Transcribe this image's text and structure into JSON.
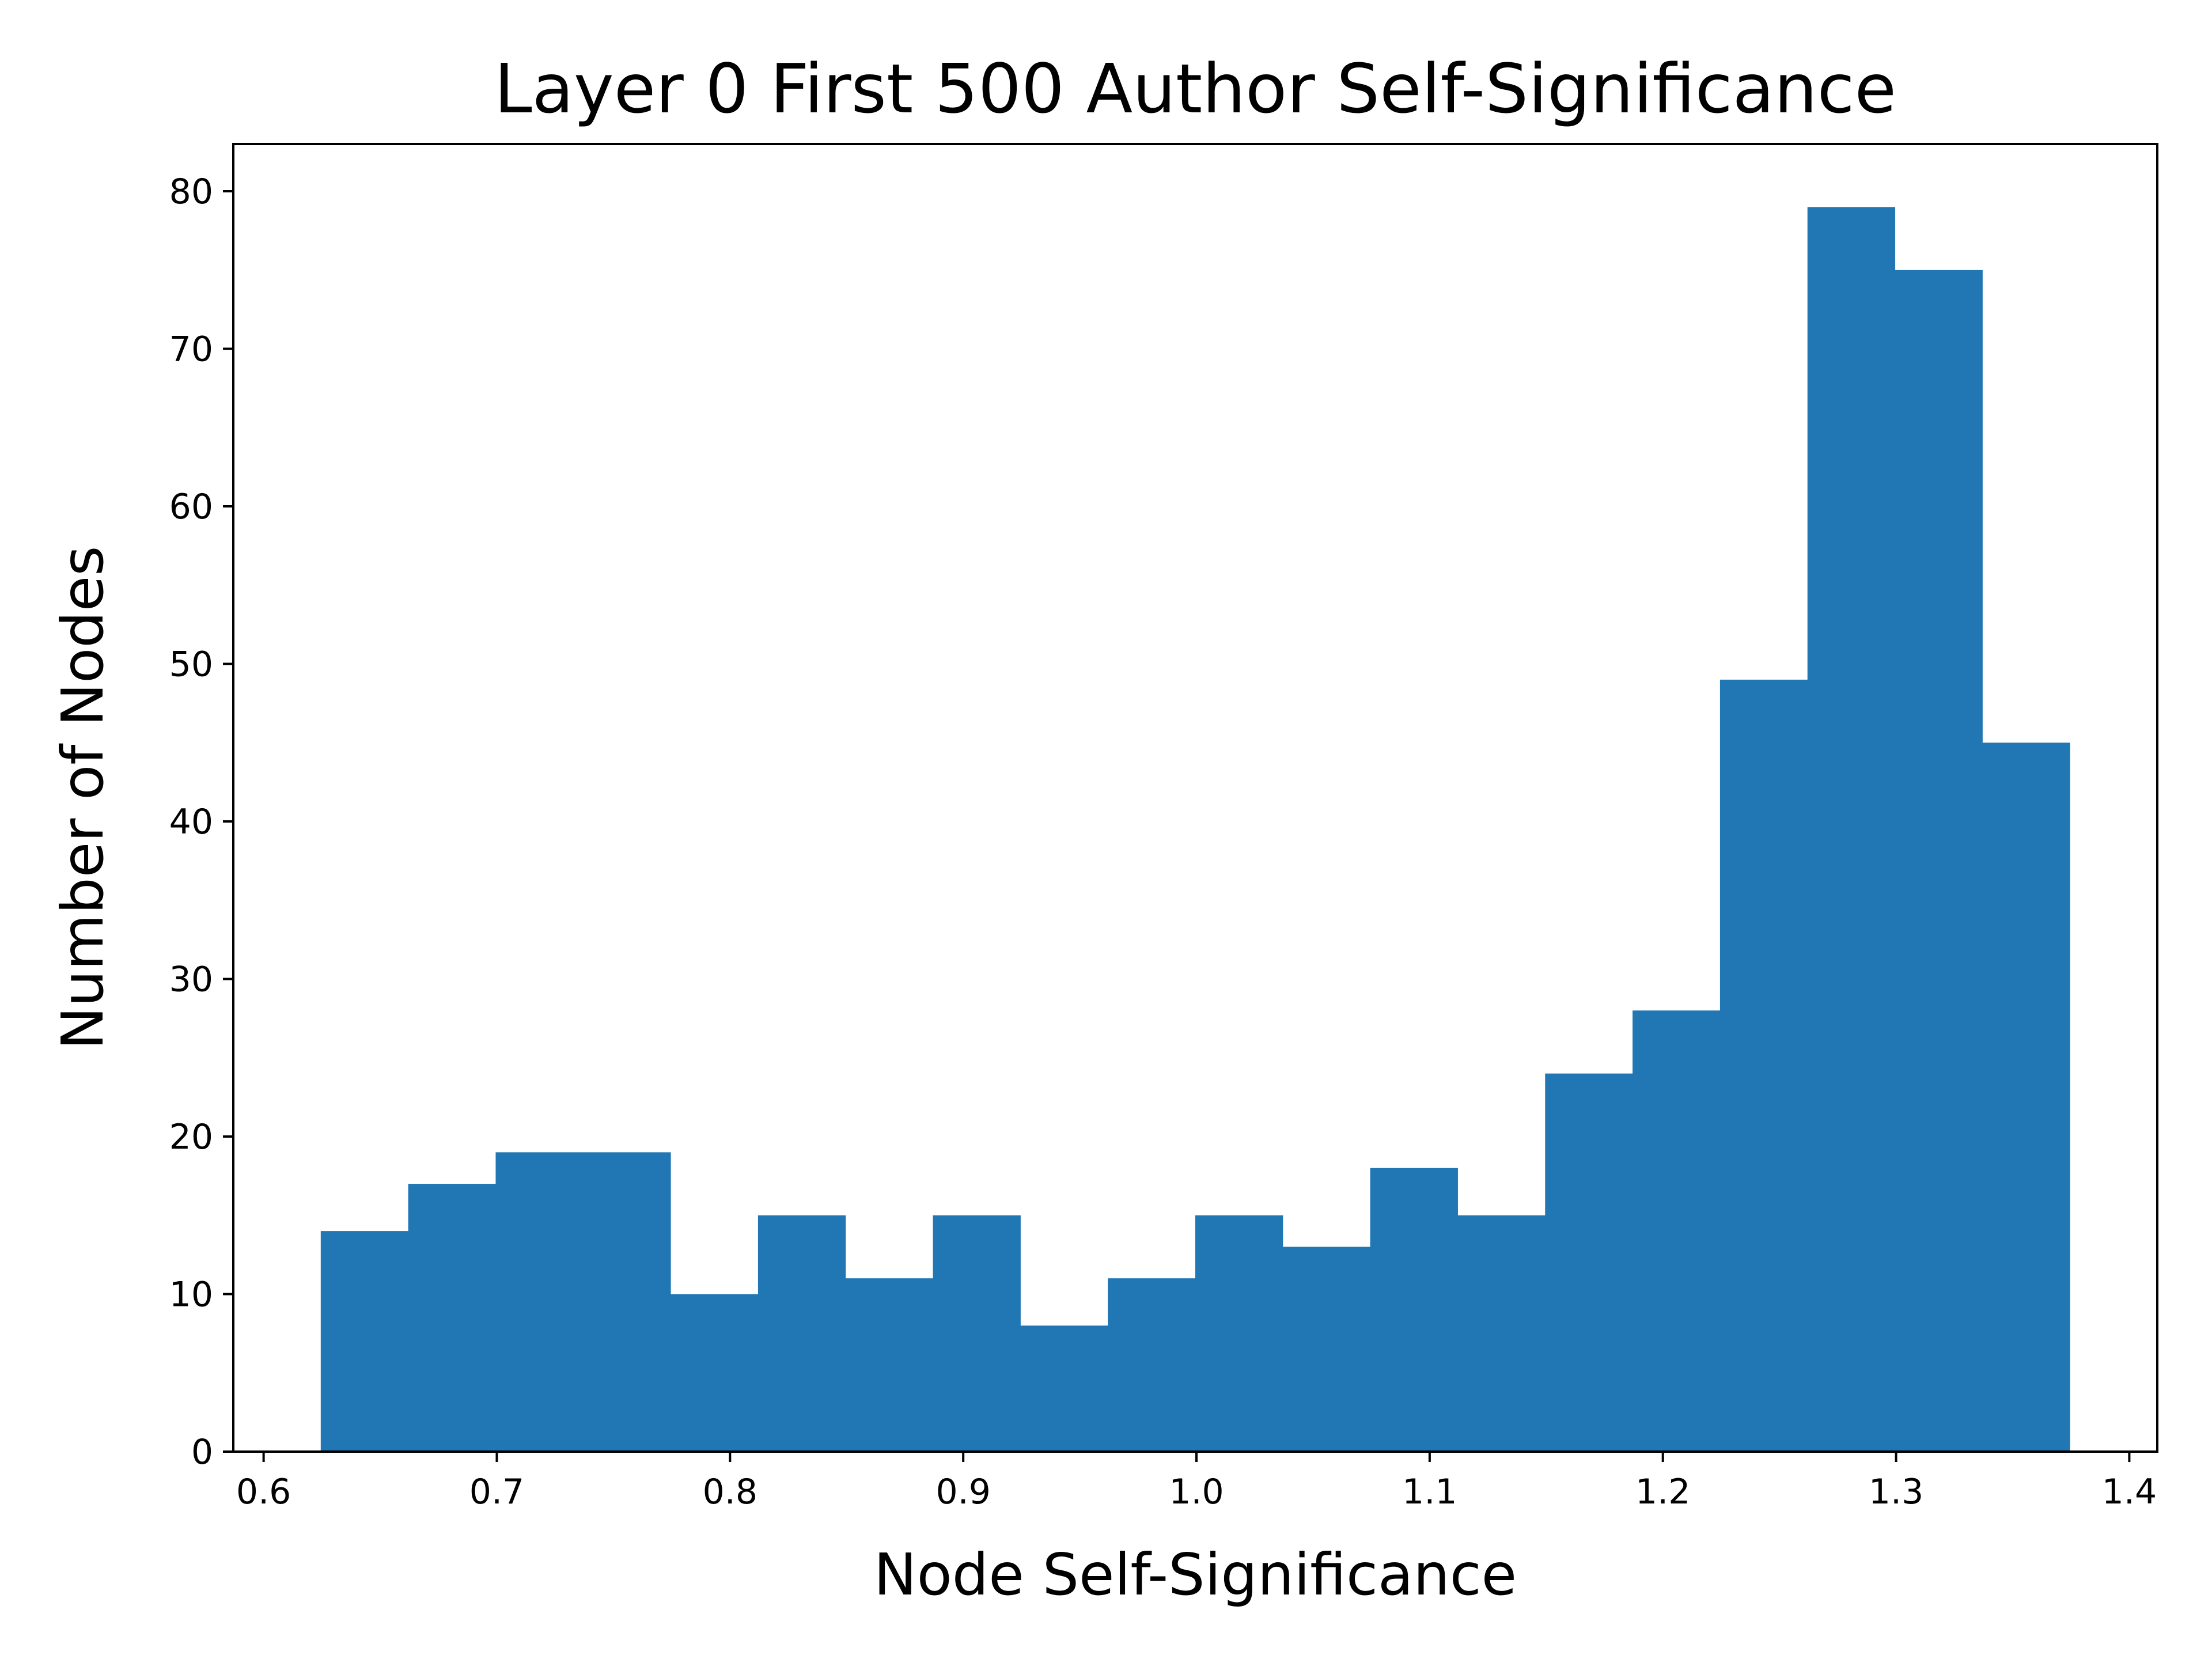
{
  "colors": {
    "bar": "#2077b4",
    "axis": "#000000",
    "background": "#ffffff"
  },
  "chart_data": {
    "type": "bar",
    "subtype": "histogram",
    "title": "Layer 0 First 500 Author Self-Significance",
    "xlabel": "Node Self-Significance",
    "ylabel": "Number of Nodes",
    "xlim": [
      0.587,
      1.412
    ],
    "ylim": [
      0,
      83
    ],
    "x_ticks": [
      0.6,
      0.7,
      0.8,
      0.9,
      1.0,
      1.1,
      1.2,
      1.3,
      1.4
    ],
    "x_tick_labels": [
      "0.6",
      "0.7",
      "0.8",
      "0.9",
      "1.0",
      "1.1",
      "1.2",
      "1.3",
      "1.4"
    ],
    "y_ticks": [
      0,
      10,
      20,
      30,
      40,
      50,
      60,
      70,
      80
    ],
    "y_tick_labels": [
      "0",
      "10",
      "20",
      "30",
      "40",
      "50",
      "60",
      "70",
      "80"
    ],
    "bin_edges": [
      0.6245,
      0.662,
      0.6995,
      0.737,
      0.7745,
      0.812,
      0.8495,
      0.887,
      0.9245,
      0.962,
      0.9995,
      1.037,
      1.0745,
      1.112,
      1.1495,
      1.187,
      1.2245,
      1.262,
      1.2995,
      1.337,
      1.3745
    ],
    "values": [
      14,
      17,
      19,
      19,
      10,
      15,
      11,
      15,
      8,
      11,
      15,
      13,
      18,
      15,
      24,
      28,
      49,
      79,
      75,
      45
    ],
    "grid": false
  }
}
